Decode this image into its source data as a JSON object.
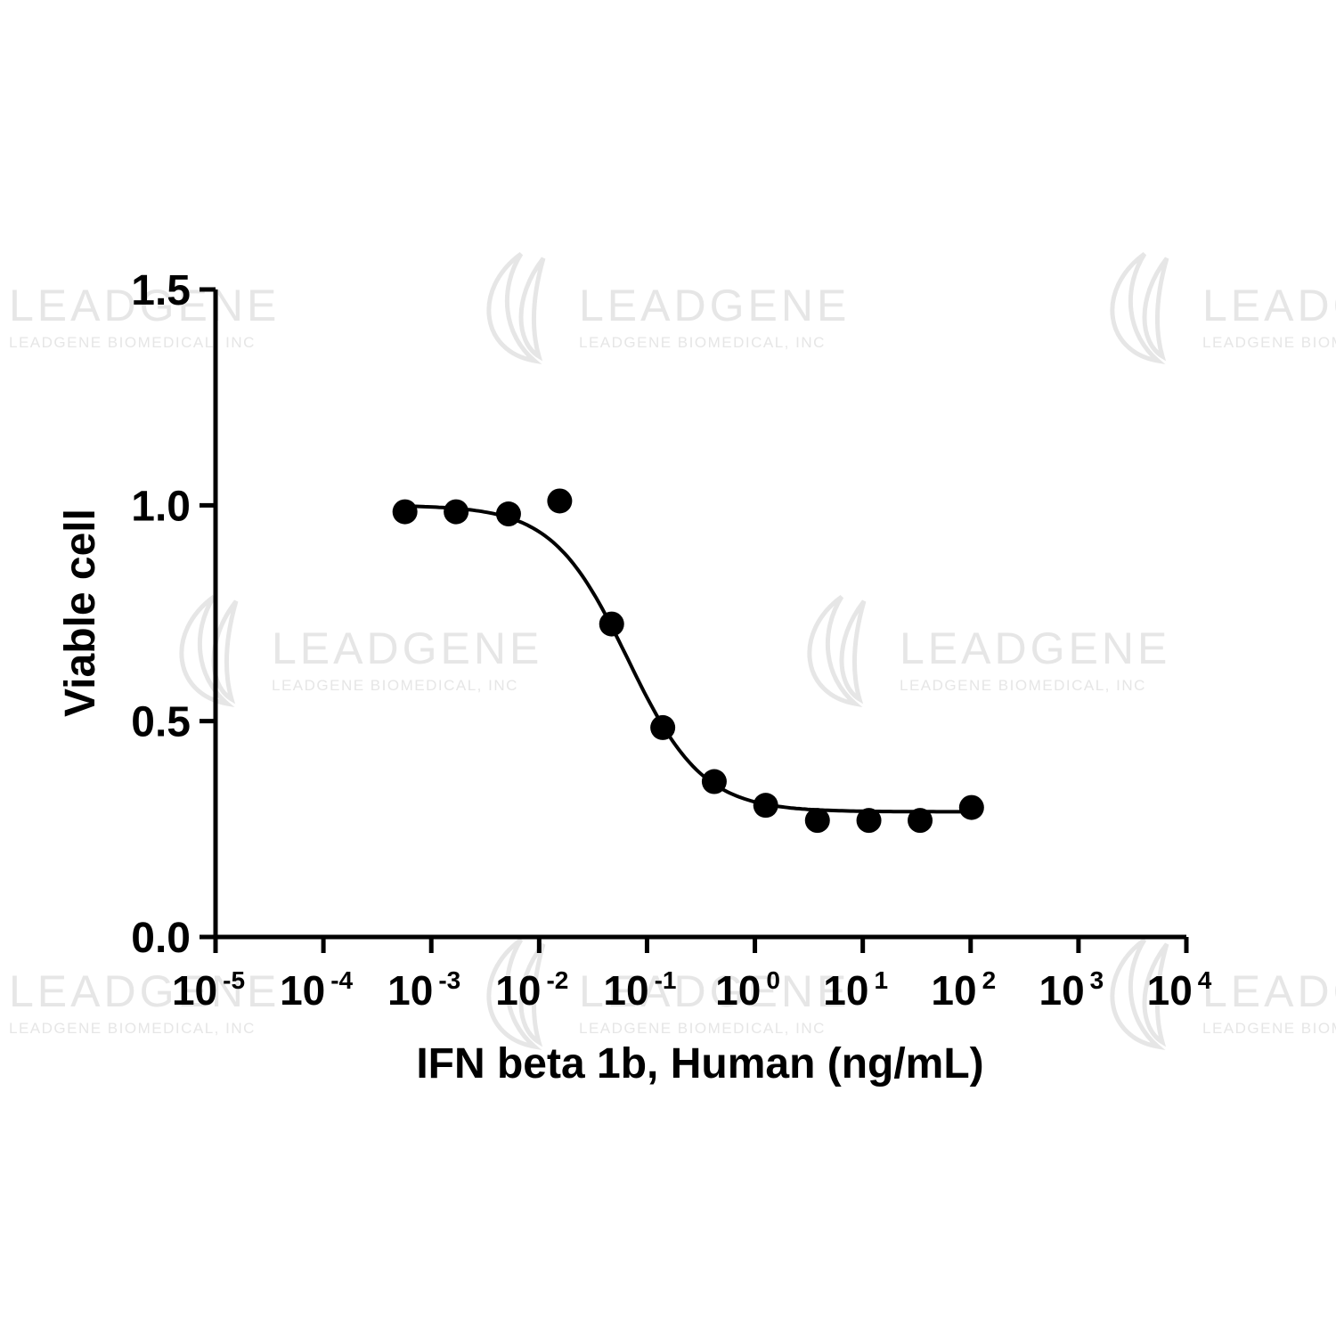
{
  "chart_data": {
    "type": "scatter",
    "title": "",
    "xlabel": "IFN beta 1b, Human (ng/mL)",
    "ylabel": "Viable cell",
    "x_scale": "log10",
    "xlim": [
      1e-05,
      10000
    ],
    "ylim": [
      0,
      1.5
    ],
    "x_ticks": [
      {
        "base": "10",
        "exp": "-5"
      },
      {
        "base": "10",
        "exp": "-4"
      },
      {
        "base": "10",
        "exp": "-3"
      },
      {
        "base": "10",
        "exp": "-2"
      },
      {
        "base": "10",
        "exp": "-1"
      },
      {
        "base": "10",
        "exp": "0"
      },
      {
        "base": "10",
        "exp": "1"
      },
      {
        "base": "10",
        "exp": "2"
      },
      {
        "base": "10",
        "exp": "3"
      },
      {
        "base": "10",
        "exp": "4"
      }
    ],
    "y_ticks": [
      "0.0",
      "0.5",
      "1.0",
      "1.5"
    ],
    "grid": false,
    "legend": "none",
    "series": [
      {
        "marker": "filled-circle",
        "color": "#000000",
        "x": [
          0.00057,
          0.0017,
          0.0052,
          0.0155,
          0.047,
          0.14,
          0.42,
          1.26,
          3.8,
          11.4,
          34,
          102
        ],
        "y": [
          0.985,
          0.985,
          0.98,
          1.01,
          0.725,
          0.485,
          0.36,
          0.305,
          0.27,
          0.27,
          0.27,
          0.3
        ]
      }
    ],
    "fit_curve": {
      "model": "four-parameter-logistic",
      "top": 1.0,
      "bottom": 0.29,
      "ec50": 0.066,
      "hill_slope": -1.25,
      "x_range": [
        0.0005,
        100
      ]
    }
  },
  "watermark": {
    "brand": "LEADGENE",
    "company": "LEADGENE BIOMEDICAL, INC",
    "color": "#e6e6e6"
  }
}
